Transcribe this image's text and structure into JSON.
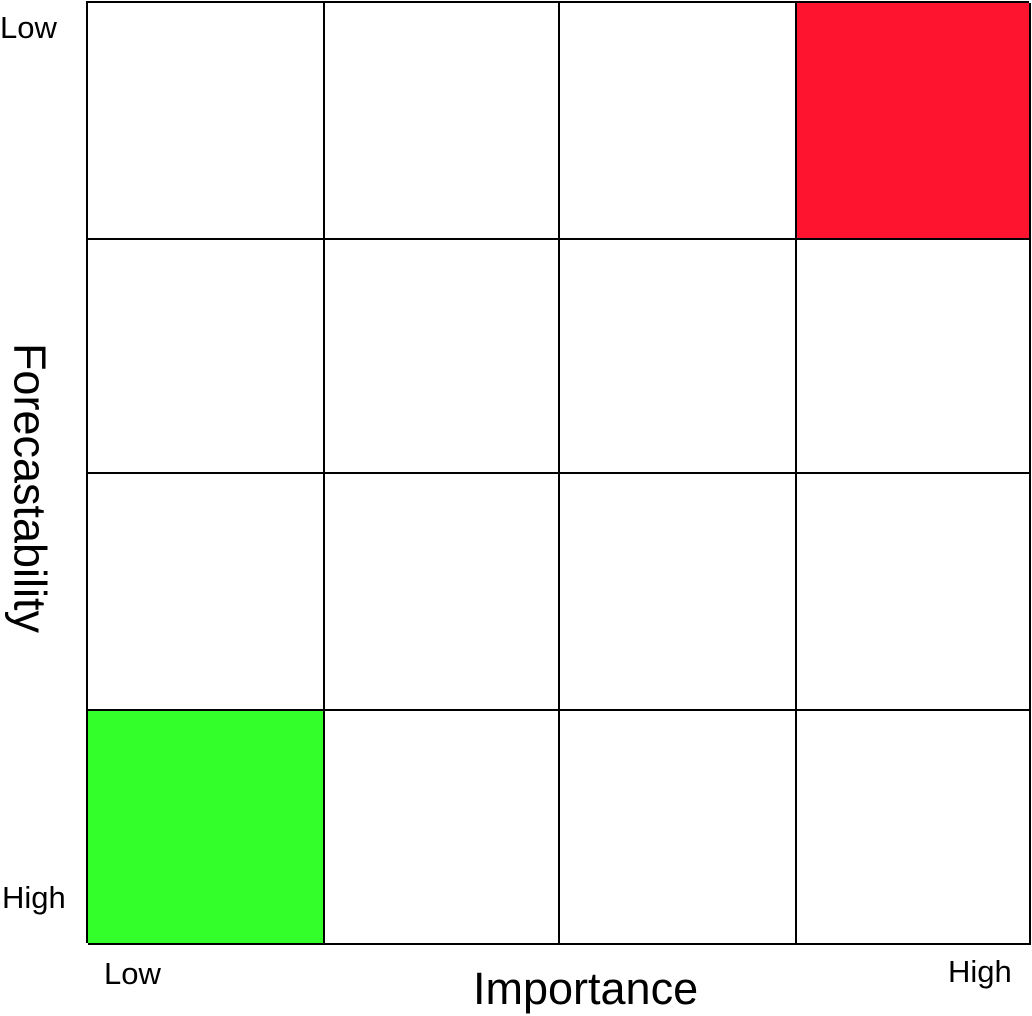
{
  "y_axis": {
    "title": "Forecastability",
    "top_label": "Low",
    "bottom_label": "High"
  },
  "x_axis": {
    "title": "Importance",
    "left_label": "Low",
    "right_label": "High"
  },
  "matrix": {
    "rows": 4,
    "columns": 4,
    "highlighted_cells": [
      {
        "row": 1,
        "column": 4,
        "color": "#ff1430"
      },
      {
        "row": 4,
        "column": 1,
        "color": "#33ff2a"
      }
    ],
    "default_cell_color": "#ffffff",
    "line_color": "#000000"
  }
}
